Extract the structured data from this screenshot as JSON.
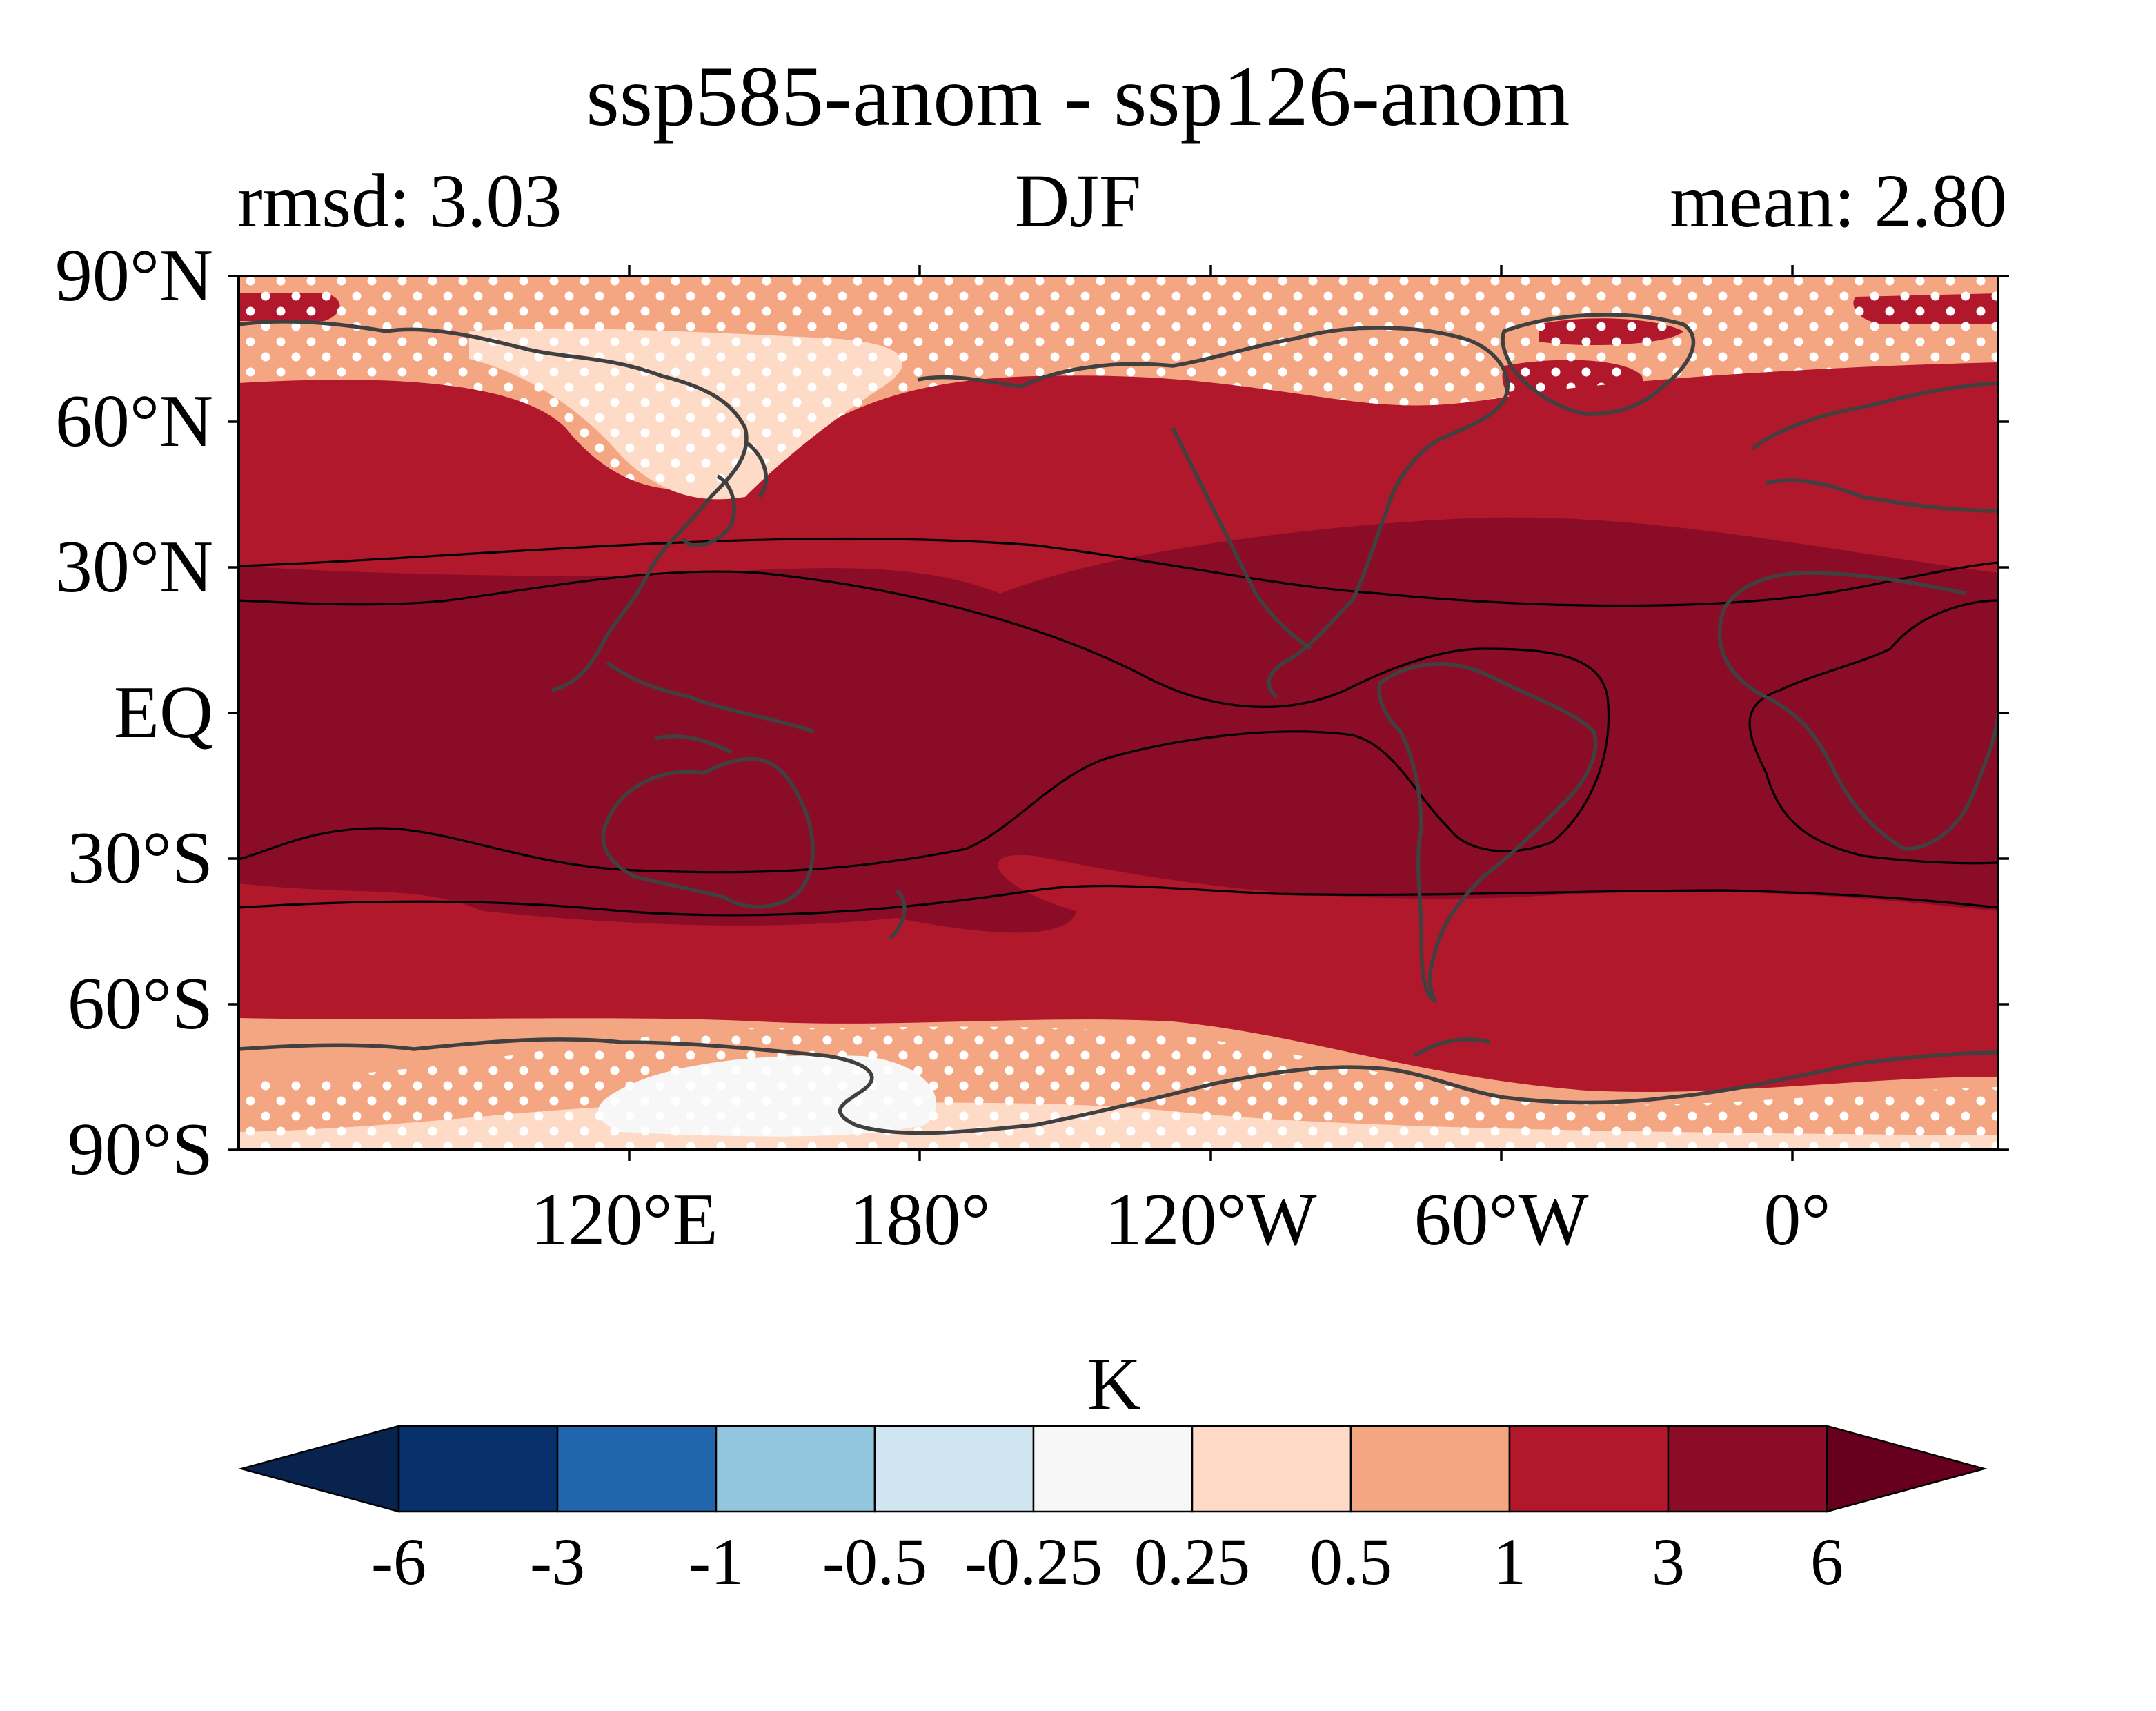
{
  "title": "ssp585-anom - ssp126-anom",
  "subtitle_left": "rmsd: 3.03",
  "subtitle_center": "DJF",
  "subtitle_right": "mean: 2.80",
  "map": {
    "projection": "PlateCarree",
    "central_longitude": "centered on 200°E",
    "y_tick_labels": [
      "90°N",
      "60°N",
      "30°N",
      "EQ",
      "30°S",
      "60°S",
      "90°S"
    ],
    "x_tick_labels": [
      "120°E",
      "180°",
      "120°W",
      "60°W",
      "0°"
    ],
    "field": "surface temperature anomaly difference",
    "stippling": "white dots where not significant",
    "contour_overlay": "black contour lines",
    "coastline_color": "#404040"
  },
  "colorbar": {
    "label": "K",
    "extend": "both",
    "tick_labels": [
      "-6",
      "-3",
      "-1",
      "-0.5",
      "-0.25",
      "0.25",
      "0.5",
      "1",
      "3",
      "6"
    ],
    "colors": [
      "#08234d",
      "#08306b",
      "#2166ac",
      "#92c5de",
      "#d1e5f0",
      "#f7f7f7",
      "#fddbc7",
      "#f4a582",
      "#b2182b",
      "#8a0c26",
      "#67001f"
    ]
  }
}
